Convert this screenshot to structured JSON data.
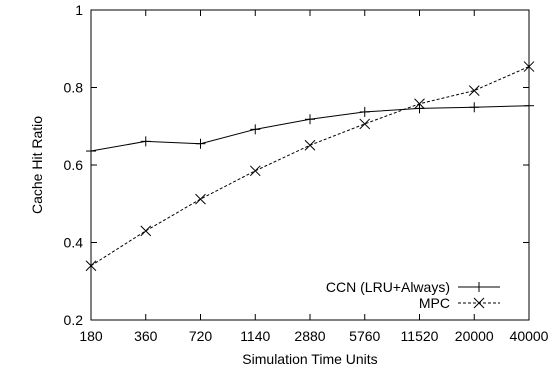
{
  "chart_data": {
    "type": "line",
    "title": "",
    "xlabel": "Simulation Time Units",
    "ylabel": "Cache Hit Ratio",
    "categories": [
      "180",
      "360",
      "720",
      "1140",
      "2880",
      "5760",
      "11520",
      "20000",
      "40000"
    ],
    "ylim": [
      0.2,
      1.0
    ],
    "yticks": [
      "0.2",
      "0.4",
      "0.6",
      "0.8",
      "1"
    ],
    "grid": false,
    "legend_position": "bottom-right",
    "series": [
      {
        "name": "CCN (LRU+Always)",
        "marker": "plus",
        "line_style": "solid",
        "color": "#000000",
        "values": [
          0.636,
          0.661,
          0.655,
          0.692,
          0.718,
          0.737,
          0.746,
          0.749,
          0.753
        ]
      },
      {
        "name": "MPC",
        "marker": "x",
        "line_style": "dashed",
        "color": "#000000",
        "values": [
          0.34,
          0.43,
          0.512,
          0.585,
          0.651,
          0.706,
          0.758,
          0.792,
          0.854
        ]
      }
    ]
  }
}
